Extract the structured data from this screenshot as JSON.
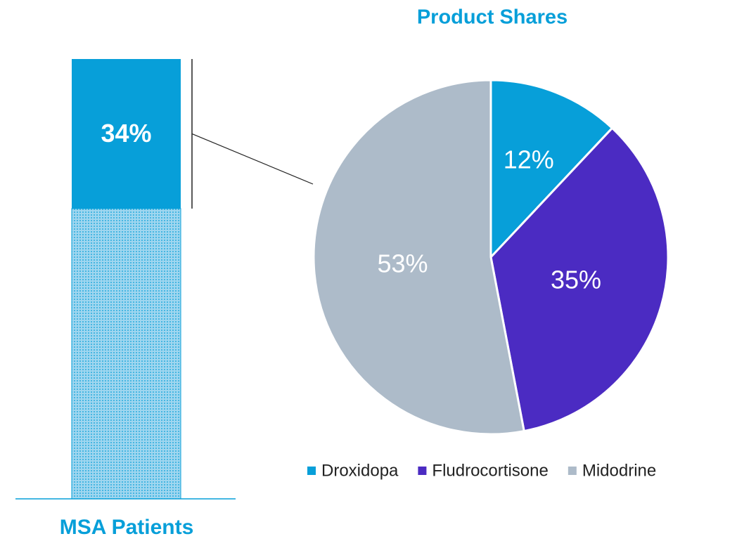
{
  "chart_data": [
    {
      "type": "stacked_bar",
      "xlabel": "MSA Patients",
      "values": [
        34,
        66
      ],
      "value_labels": [
        "34%",
        null
      ],
      "color": "#079fd9"
    },
    {
      "type": "pie",
      "title": "Product Shares",
      "categories": [
        "Droxidopa",
        "Fludrocortisone",
        "Midodrine"
      ],
      "values": [
        12,
        35,
        53
      ],
      "value_labels": [
        "12%",
        "35%",
        "53%"
      ],
      "colors": [
        "#079fd9",
        "#4b2bc2",
        "#adbbc9"
      ],
      "legend": "bottom"
    }
  ]
}
